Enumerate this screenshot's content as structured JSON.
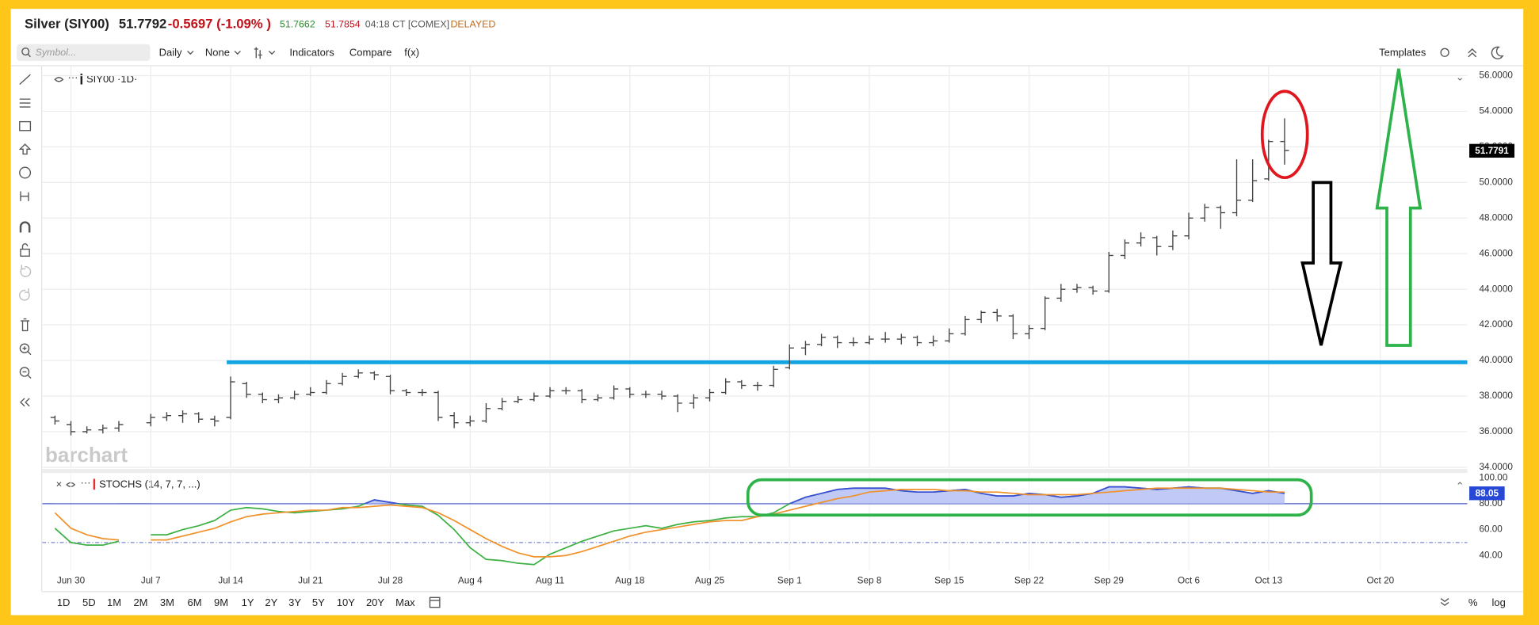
{
  "header": {
    "title": "Silver (SIY00)",
    "last": "51.7792",
    "change": "-0.5697 (-1.09% )",
    "bid": "51.7662",
    "ask": "51.7854",
    "time": "04:18 CT [COMEX]",
    "status": "DELAYED"
  },
  "toolbar": {
    "search_placeholder": "Symbol...",
    "interval": "Daily",
    "comparison": "None",
    "indicators": "Indicators",
    "compare": "Compare",
    "function": "f(x)",
    "templates": "Templates"
  },
  "chart_data": [
    {
      "type": "ohlc",
      "title": "SIY00 ·1D·",
      "watermark": "barchart",
      "color": "#444444",
      "grid": true,
      "categories": [
        null,
        "Jun 30",
        null,
        null,
        null,
        null,
        "Jul 7",
        null,
        null,
        null,
        null,
        "Jul 14",
        null,
        null,
        null,
        null,
        "Jul 21",
        null,
        null,
        null,
        null,
        "Jul 28",
        null,
        null,
        null,
        null,
        "Aug 4",
        null,
        null,
        null,
        null,
        "Aug 11",
        null,
        null,
        null,
        null,
        "Aug 18",
        null,
        null,
        null,
        null,
        "Aug 25",
        null,
        null,
        null,
        null,
        "Sep 1",
        null,
        null,
        null,
        null,
        "Sep 8",
        null,
        null,
        null,
        null,
        "Sep 15",
        null,
        null,
        null,
        null,
        "Sep 22",
        null,
        null,
        null,
        null,
        "Sep 29",
        null,
        null,
        null,
        null,
        "Oct 6",
        null,
        null,
        null,
        null,
        "Oct 13",
        null,
        null,
        null,
        null,
        null,
        null,
        "Oct 20",
        null,
        null,
        null,
        null,
        null
      ],
      "open": [
        36.8,
        36.4,
        36.0,
        36.1,
        36.2,
        null,
        36.5,
        36.8,
        36.9,
        37.0,
        36.7,
        36.8,
        38.7,
        38.1,
        37.8,
        37.9,
        38.1,
        38.2,
        38.7,
        39.1,
        39.3,
        39.1,
        38.3,
        38.2,
        38.2,
        36.9,
        36.5,
        36.6,
        37.3,
        37.7,
        37.8,
        38.0,
        38.3,
        38.3,
        37.8,
        37.9,
        38.4,
        38.1,
        38.1,
        38.0,
        37.6,
        37.9,
        38.2,
        38.8,
        38.6,
        38.6,
        39.6,
        40.7,
        40.9,
        41.3,
        41.0,
        41.0,
        41.2,
        41.2,
        41.3,
        41.0,
        41.1,
        41.5,
        42.3,
        42.7,
        42.5,
        41.5,
        41.8,
        43.5,
        44.0,
        44.1,
        43.9,
        45.9,
        46.6,
        46.9,
        46.4,
        47.0,
        48.0,
        48.6,
        48.3,
        49.0,
        50.2,
        52.3,
        null,
        null,
        null,
        null,
        null,
        null,
        null,
        null,
        null,
        null,
        null
      ],
      "high": [
        36.9,
        36.6,
        36.3,
        36.4,
        36.6,
        null,
        37.0,
        37.1,
        37.2,
        37.1,
        36.9,
        39.1,
        38.8,
        38.2,
        38.1,
        38.3,
        38.5,
        38.9,
        39.3,
        39.5,
        39.4,
        39.2,
        38.4,
        38.4,
        38.3,
        37.1,
        36.9,
        37.6,
        37.9,
        38.0,
        38.2,
        38.5,
        38.5,
        38.4,
        38.1,
        38.6,
        38.5,
        38.3,
        38.3,
        38.1,
        38.1,
        38.4,
        39.0,
        38.9,
        38.8,
        39.7,
        40.9,
        41.1,
        41.5,
        41.4,
        41.3,
        41.4,
        41.6,
        41.5,
        41.4,
        41.4,
        41.8,
        42.5,
        42.8,
        42.9,
        42.6,
        42.0,
        43.6,
        44.3,
        44.3,
        44.2,
        46.1,
        46.8,
        47.2,
        47.0,
        47.3,
        48.3,
        48.8,
        48.7,
        51.3,
        51.3,
        52.4,
        53.6,
        null,
        null,
        null,
        null,
        null,
        null,
        null,
        null,
        null,
        null,
        null
      ],
      "low": [
        36.4,
        35.8,
        35.9,
        35.9,
        36.0,
        null,
        36.3,
        36.6,
        36.5,
        36.5,
        36.3,
        36.7,
        37.9,
        37.6,
        37.6,
        37.8,
        38.0,
        38.1,
        38.6,
        39.0,
        38.9,
        38.1,
        38.0,
        38.0,
        36.6,
        36.2,
        36.3,
        36.5,
        37.2,
        37.6,
        37.7,
        37.9,
        38.1,
        37.6,
        37.7,
        37.8,
        37.9,
        37.9,
        37.8,
        37.1,
        37.3,
        37.7,
        38.1,
        38.4,
        38.3,
        38.5,
        39.5,
        40.3,
        40.8,
        40.7,
        40.8,
        40.9,
        41.0,
        40.9,
        40.8,
        40.8,
        41.0,
        41.4,
        42.1,
        42.2,
        41.2,
        41.2,
        41.7,
        43.3,
        43.8,
        43.7,
        43.8,
        45.7,
        46.4,
        45.9,
        46.2,
        46.8,
        47.8,
        47.4,
        48.1,
        48.9,
        50.1,
        51.0,
        null,
        null,
        null,
        null,
        null,
        null,
        null,
        null,
        null,
        null,
        null
      ],
      "close": [
        36.6,
        36.0,
        36.1,
        36.2,
        36.4,
        null,
        36.8,
        36.9,
        37.0,
        36.7,
        36.6,
        38.8,
        38.1,
        37.8,
        37.9,
        38.1,
        38.2,
        38.7,
        39.1,
        39.3,
        39.2,
        38.3,
        38.2,
        38.2,
        36.8,
        36.5,
        36.6,
        37.3,
        37.7,
        37.8,
        38.0,
        38.3,
        38.3,
        37.8,
        37.9,
        38.4,
        38.1,
        38.1,
        38.0,
        37.6,
        37.9,
        38.2,
        38.8,
        38.6,
        38.6,
        39.5,
        40.7,
        40.9,
        41.3,
        41.0,
        41.0,
        41.2,
        41.2,
        41.3,
        41.0,
        41.1,
        41.5,
        42.3,
        42.7,
        42.5,
        41.5,
        41.8,
        43.5,
        44.0,
        44.1,
        43.9,
        45.9,
        46.6,
        46.9,
        46.4,
        47.0,
        48.0,
        48.6,
        48.3,
        49.0,
        50.1,
        52.3,
        51.8,
        null,
        null,
        null,
        null,
        null,
        null,
        null,
        null,
        null,
        null,
        null
      ],
      "ylim": [
        33.96,
        56.5
      ],
      "yticks": [
        {
          "value": 34,
          "label": "34.0000"
        },
        {
          "value": 36,
          "label": "36.0000"
        },
        {
          "value": 38,
          "label": "38.0000"
        },
        {
          "value": 40,
          "label": "40.0000"
        },
        {
          "value": 42,
          "label": "42.0000"
        },
        {
          "value": 44,
          "label": "44.0000"
        },
        {
          "value": 46,
          "label": "46.0000"
        },
        {
          "value": 48,
          "label": "48.0000"
        },
        {
          "value": 50,
          "label": "50.0000"
        },
        {
          "value": 52,
          "label": "52.0000"
        },
        {
          "value": 54,
          "label": "54.0000"
        },
        {
          "value": 56,
          "label": "56.0000"
        }
      ],
      "last_value": 51.7791,
      "horizontal_line": {
        "value": 39.9,
        "color": "#12a3e3"
      }
    },
    {
      "type": "line",
      "title": "STOCHS (14, 7, 7, ...)",
      "grid": false,
      "series": [
        {
          "color": "#3cb043",
          "overbought_color": "#3b4cdb",
          "overbought_fill": "#b6bff5",
          "values": [
            61,
            50,
            48,
            48,
            51,
            null,
            56,
            56,
            60,
            63,
            67,
            75,
            77,
            76,
            74,
            73,
            74,
            75,
            76,
            78,
            83,
            81,
            79,
            78,
            71,
            60,
            46,
            37,
            36,
            34,
            33,
            41,
            46,
            51,
            55,
            59,
            61,
            63,
            61,
            64,
            66,
            67,
            69,
            70,
            70,
            73,
            80,
            85,
            88,
            91,
            92,
            92,
            92,
            90,
            89,
            89,
            90,
            91,
            88,
            86,
            86,
            88,
            87,
            85,
            86,
            88,
            93,
            93,
            92,
            91,
            92,
            93,
            92,
            92,
            90,
            88,
            90,
            88.05,
            null,
            null,
            null,
            null,
            null,
            null,
            null,
            null,
            null,
            null,
            null
          ]
        },
        {
          "color": "#f0922b",
          "values": [
            73,
            61,
            56,
            53,
            52,
            null,
            52,
            52,
            55,
            58,
            61,
            66,
            70,
            72,
            73,
            74,
            75,
            75,
            77,
            77,
            78,
            79,
            78,
            77,
            73,
            67,
            60,
            53,
            47,
            42,
            39,
            39,
            40,
            43,
            47,
            51,
            55,
            58,
            60,
            62,
            64,
            66,
            67,
            67,
            70,
            72,
            75,
            78,
            81,
            84,
            86,
            89,
            90,
            91,
            91,
            91,
            90,
            90,
            89,
            89,
            88,
            87,
            87,
            87,
            87,
            88,
            89,
            90,
            91,
            92,
            92,
            92,
            92,
            92,
            91,
            90,
            89,
            89,
            null,
            null,
            null,
            null,
            null,
            null,
            null,
            null,
            null,
            null,
            null
          ]
        }
      ],
      "ylim": [
        28,
        103.8
      ],
      "yticks": [
        {
          "value": 40,
          "label": "40.00"
        },
        {
          "value": 60,
          "label": "60.00"
        },
        {
          "value": 80,
          "label": "80.00"
        },
        {
          "value": 100,
          "label": "100.00"
        }
      ],
      "levels": [
        {
          "value": 80,
          "color": "#4a5bc9",
          "dashed": false
        },
        {
          "value": 50,
          "color": "#7a86c9",
          "dashed": true
        }
      ],
      "last_value": 88.05
    }
  ],
  "range_buttons": [
    "1D",
    "5D",
    "1M",
    "2M",
    "3M",
    "6M",
    "9M",
    "1Y",
    "2Y",
    "3Y",
    "5Y",
    "10Y",
    "20Y",
    "Max"
  ],
  "footer_right": {
    "percent": "%",
    "log": "log"
  }
}
